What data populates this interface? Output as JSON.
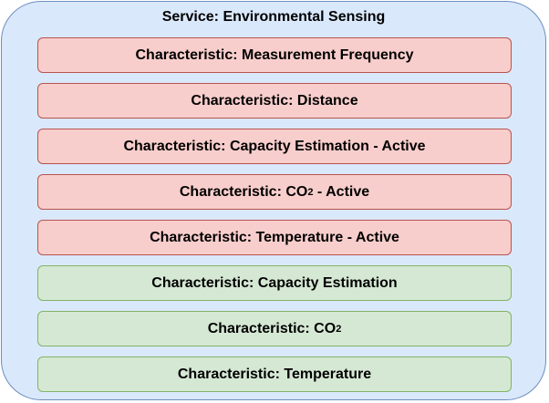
{
  "service": {
    "title": "Service: Environmental Sensing"
  },
  "characteristics": [
    {
      "prefix": "Characteristic: Measurement Frequency",
      "sub": "",
      "suffix": "",
      "status": "red"
    },
    {
      "prefix": "Characteristic: Distance",
      "sub": "",
      "suffix": "",
      "status": "red"
    },
    {
      "prefix": "Characteristic: Capacity Estimation - Active",
      "sub": "",
      "suffix": "",
      "status": "red"
    },
    {
      "prefix": "Characteristic: CO",
      "sub": "2",
      "suffix": " - Active",
      "status": "red"
    },
    {
      "prefix": "Characteristic: Temperature - Active",
      "sub": "",
      "suffix": "",
      "status": "red"
    },
    {
      "prefix": "Characteristic: Capacity Estimation",
      "sub": "",
      "suffix": "",
      "status": "green"
    },
    {
      "prefix": "Characteristic: CO",
      "sub": "2",
      "suffix": "",
      "status": "green"
    },
    {
      "prefix": "Characteristic: Temperature",
      "sub": "",
      "suffix": "",
      "status": "green"
    }
  ],
  "colors": {
    "service_fill": "#dae8fc",
    "service_stroke": "#6c8ebf",
    "red_fill": "#f8cecc",
    "red_stroke": "#b85450",
    "green_fill": "#d5e8d4",
    "green_stroke": "#82b366"
  }
}
